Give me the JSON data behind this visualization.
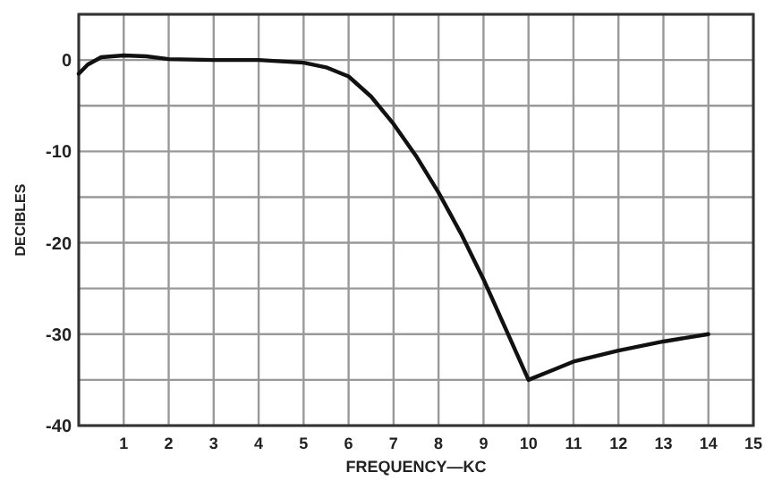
{
  "chart_data": {
    "type": "line",
    "xlabel": "FREQUENCY—KC",
    "ylabel": "DECIBLES",
    "x": [
      0,
      0.2,
      0.5,
      1,
      1.5,
      2,
      3,
      4,
      5,
      5.5,
      6,
      6.5,
      7,
      7.5,
      8,
      8.5,
      9,
      9.5,
      10,
      10.5,
      11,
      12,
      13,
      14
    ],
    "series": [
      {
        "color": "#111111",
        "values": [
          -1.5,
          -0.5,
          0.3,
          0.5,
          0.4,
          0.1,
          0,
          0,
          -0.3,
          -0.8,
          -1.8,
          -4,
          -7,
          -10.5,
          -14.5,
          -19,
          -24,
          -29.5,
          -35,
          -34,
          -33,
          -31.8,
          -30.8,
          -30
        ]
      }
    ],
    "xlim": [
      0,
      15
    ],
    "xticks": [
      {
        "value": 0,
        "label": null
      },
      1,
      2,
      3,
      4,
      5,
      6,
      7,
      8,
      9,
      10,
      11,
      12,
      13,
      14,
      15
    ],
    "ylim": [
      -40,
      5
    ],
    "yticks": [
      -40,
      {
        "value": -35,
        "label": null
      },
      -30,
      {
        "value": -25,
        "label": null
      },
      -20,
      {
        "value": -15,
        "label": null
      },
      -10,
      {
        "value": -5,
        "label": null
      },
      0,
      {
        "value": 5,
        "label": null
      }
    ],
    "grid": true,
    "marker": "none",
    "line_style": "solid"
  }
}
